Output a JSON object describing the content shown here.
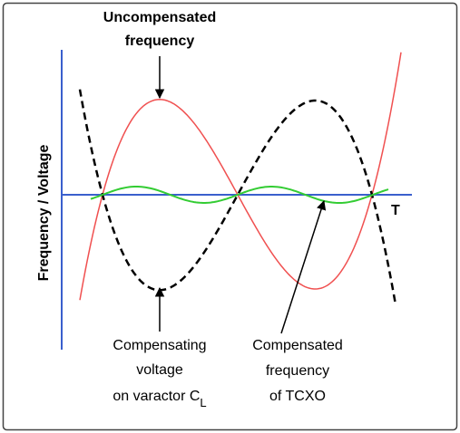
{
  "axis_label": "Frequency / Voltage",
  "axis_end_label": "T",
  "labels": [
    {
      "lines": [
        "Uncompensated",
        "frequency"
      ]
    },
    {
      "lines": [
        "Compensating",
        "voltage",
        "on varactor C"
      ],
      "subscript": "L"
    },
    {
      "lines": [
        "Compensated",
        "frequency",
        "of TCXO"
      ]
    }
  ]
}
